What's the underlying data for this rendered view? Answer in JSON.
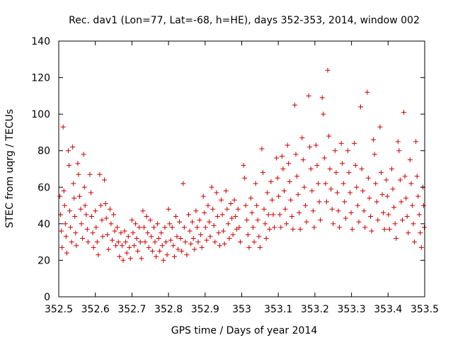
{
  "chart_data": {
    "type": "scatter",
    "title": "Rec. dav1 (Lon=77, Lat=-68, h=HE), days 352-353, 2014, window 002",
    "xlabel": "GPS time / Days of year 2014",
    "ylabel": "STEC from uqrg / TECUs",
    "xlim": [
      352.5,
      353.5
    ],
    "ylim": [
      0,
      140
    ],
    "xticks": [
      352.5,
      352.6,
      352.7,
      352.8,
      352.9,
      353,
      353.1,
      353.2,
      353.3,
      353.4,
      353.5
    ],
    "xtick_labels": [
      "352.5",
      "352.6",
      "352.7",
      "352.8",
      "352.9",
      "353",
      "353.1",
      "353.2",
      "353.3",
      "353.4",
      "353.5"
    ],
    "yticks": [
      0,
      20,
      40,
      60,
      80,
      100,
      120,
      140
    ],
    "ytick_labels": [
      "0",
      "20",
      "40",
      "60",
      "80",
      "100",
      "120",
      "140"
    ],
    "grid": false,
    "marker": "+",
    "marker_color": "#cc0000",
    "points": [
      [
        352.503,
        55
      ],
      [
        352.505,
        45
      ],
      [
        352.507,
        36
      ],
      [
        352.509,
        27
      ],
      [
        352.512,
        93
      ],
      [
        352.514,
        58
      ],
      [
        352.516,
        50
      ],
      [
        352.518,
        40
      ],
      [
        352.52,
        33
      ],
      [
        352.522,
        24
      ],
      [
        352.526,
        80
      ],
      [
        352.528,
        72
      ],
      [
        352.53,
        47
      ],
      [
        352.532,
        38
      ],
      [
        352.535,
        30
      ],
      [
        352.538,
        82
      ],
      [
        352.54,
        62
      ],
      [
        352.542,
        54
      ],
      [
        352.544,
        44
      ],
      [
        352.546,
        35
      ],
      [
        352.548,
        28
      ],
      [
        352.552,
        73
      ],
      [
        352.554,
        67
      ],
      [
        352.557,
        55
      ],
      [
        352.56,
        48
      ],
      [
        352.562,
        40
      ],
      [
        352.565,
        32
      ],
      [
        352.568,
        78
      ],
      [
        352.57,
        60
      ],
      [
        352.572,
        50
      ],
      [
        352.575,
        45
      ],
      [
        352.578,
        37
      ],
      [
        352.58,
        30
      ],
      [
        352.585,
        67
      ],
      [
        352.588,
        57
      ],
      [
        352.59,
        44
      ],
      [
        352.593,
        35
      ],
      [
        352.595,
        27
      ],
      [
        352.6,
        47
      ],
      [
        352.602,
        38
      ],
      [
        352.605,
        30
      ],
      [
        352.608,
        23
      ],
      [
        352.612,
        67
      ],
      [
        352.615,
        50
      ],
      [
        352.618,
        42
      ],
      [
        352.62,
        33
      ],
      [
        352.625,
        64
      ],
      [
        352.628,
        51
      ],
      [
        352.63,
        43
      ],
      [
        352.633,
        34
      ],
      [
        352.636,
        26
      ],
      [
        352.64,
        48
      ],
      [
        352.643,
        40
      ],
      [
        352.646,
        31
      ],
      [
        352.65,
        45
      ],
      [
        352.653,
        36
      ],
      [
        352.656,
        28
      ],
      [
        352.66,
        38
      ],
      [
        352.663,
        30
      ],
      [
        352.666,
        22
      ],
      [
        352.67,
        35
      ],
      [
        352.673,
        28
      ],
      [
        352.676,
        20
      ],
      [
        352.68,
        36
      ],
      [
        352.683,
        30
      ],
      [
        352.686,
        24
      ],
      [
        352.69,
        33
      ],
      [
        352.693,
        27
      ],
      [
        352.696,
        21
      ],
      [
        352.7,
        42
      ],
      [
        352.703,
        35
      ],
      [
        352.706,
        28
      ],
      [
        352.71,
        40
      ],
      [
        352.713,
        32
      ],
      [
        352.716,
        25
      ],
      [
        352.72,
        38
      ],
      [
        352.723,
        30
      ],
      [
        352.726,
        21
      ],
      [
        352.73,
        47
      ],
      [
        352.733,
        38
      ],
      [
        352.736,
        30
      ],
      [
        352.74,
        44
      ],
      [
        352.743,
        35
      ],
      [
        352.746,
        27
      ],
      [
        352.75,
        42
      ],
      [
        352.753,
        33
      ],
      [
        352.756,
        25
      ],
      [
        352.76,
        38
      ],
      [
        352.763,
        30
      ],
      [
        352.766,
        22
      ],
      [
        352.77,
        40
      ],
      [
        352.773,
        32
      ],
      [
        352.776,
        25
      ],
      [
        352.78,
        35
      ],
      [
        352.783,
        28
      ],
      [
        352.786,
        20
      ],
      [
        352.79,
        38
      ],
      [
        352.793,
        30
      ],
      [
        352.796,
        23
      ],
      [
        352.8,
        48
      ],
      [
        352.803,
        40
      ],
      [
        352.806,
        31
      ],
      [
        352.81,
        38
      ],
      [
        352.813,
        28
      ],
      [
        352.816,
        22
      ],
      [
        352.82,
        44
      ],
      [
        352.823,
        33
      ],
      [
        352.826,
        26
      ],
      [
        352.83,
        41
      ],
      [
        352.833,
        32
      ],
      [
        352.836,
        25
      ],
      [
        352.84,
        62
      ],
      [
        352.843,
        38
      ],
      [
        352.846,
        30
      ],
      [
        352.85,
        23
      ],
      [
        352.855,
        45
      ],
      [
        352.858,
        36
      ],
      [
        352.861,
        29
      ],
      [
        352.865,
        41
      ],
      [
        352.868,
        32
      ],
      [
        352.871,
        26
      ],
      [
        352.875,
        47
      ],
      [
        352.878,
        38
      ],
      [
        352.881,
        30
      ],
      [
        352.885,
        42
      ],
      [
        352.888,
        34
      ],
      [
        352.891,
        27
      ],
      [
        352.895,
        55
      ],
      [
        352.898,
        46
      ],
      [
        352.901,
        38
      ],
      [
        352.904,
        31
      ],
      [
        352.908,
        50
      ],
      [
        352.911,
        41
      ],
      [
        352.914,
        33
      ],
      [
        352.918,
        60
      ],
      [
        352.921,
        48
      ],
      [
        352.924,
        39
      ],
      [
        352.927,
        30
      ],
      [
        352.931,
        57
      ],
      [
        352.934,
        44
      ],
      [
        352.937,
        35
      ],
      [
        352.94,
        28
      ],
      [
        352.944,
        53
      ],
      [
        352.947,
        45
      ],
      [
        352.95,
        36
      ],
      [
        352.953,
        29
      ],
      [
        352.957,
        58
      ],
      [
        352.96,
        48
      ],
      [
        352.963,
        40
      ],
      [
        352.966,
        32
      ],
      [
        352.97,
        51
      ],
      [
        352.973,
        43
      ],
      [
        352.976,
        34
      ],
      [
        352.98,
        53
      ],
      [
        352.983,
        44
      ],
      [
        352.986,
        37
      ],
      [
        352.99,
        48
      ],
      [
        352.993,
        38
      ],
      [
        352.996,
        30
      ],
      [
        353.005,
        72
      ],
      [
        353.008,
        65
      ],
      [
        353.011,
        50
      ],
      [
        353.014,
        42
      ],
      [
        353.017,
        34
      ],
      [
        353.02,
        27
      ],
      [
        353.025,
        54
      ],
      [
        353.028,
        46
      ],
      [
        353.031,
        38
      ],
      [
        353.034,
        30
      ],
      [
        353.038,
        62
      ],
      [
        353.041,
        50
      ],
      [
        353.044,
        42
      ],
      [
        353.047,
        33
      ],
      [
        353.05,
        27
      ],
      [
        353.055,
        81
      ],
      [
        353.058,
        68
      ],
      [
        353.061,
        48
      ],
      [
        353.064,
        40
      ],
      [
        353.067,
        32
      ],
      [
        353.07,
        57
      ],
      [
        353.073,
        45
      ],
      [
        353.076,
        37
      ],
      [
        353.08,
        63
      ],
      [
        353.083,
        53
      ],
      [
        353.086,
        45
      ],
      [
        353.089,
        38
      ],
      [
        353.095,
        76
      ],
      [
        353.098,
        65
      ],
      [
        353.101,
        55
      ],
      [
        353.104,
        45
      ],
      [
        353.107,
        38
      ],
      [
        353.11,
        77
      ],
      [
        353.113,
        70
      ],
      [
        353.116,
        58
      ],
      [
        353.119,
        48
      ],
      [
        353.122,
        40
      ],
      [
        353.125,
        83
      ],
      [
        353.128,
        73
      ],
      [
        353.131,
        63
      ],
      [
        353.134,
        53
      ],
      [
        353.137,
        44
      ],
      [
        353.14,
        37
      ],
      [
        353.145,
        105
      ],
      [
        353.148,
        78
      ],
      [
        353.151,
        66
      ],
      [
        353.154,
        56
      ],
      [
        353.157,
        46
      ],
      [
        353.16,
        37
      ],
      [
        353.165,
        87
      ],
      [
        353.168,
        75
      ],
      [
        353.171,
        60
      ],
      [
        353.174,
        50
      ],
      [
        353.177,
        41
      ],
      [
        353.183,
        110
      ],
      [
        353.186,
        82
      ],
      [
        353.189,
        70
      ],
      [
        353.192,
        58
      ],
      [
        353.195,
        47
      ],
      [
        353.198,
        38
      ],
      [
        353.203,
        83
      ],
      [
        353.206,
        72
      ],
      [
        353.209,
        62
      ],
      [
        353.212,
        52
      ],
      [
        353.215,
        42
      ],
      [
        353.22,
        109
      ],
      [
        353.223,
        100
      ],
      [
        353.226,
        76
      ],
      [
        353.229,
        62
      ],
      [
        353.232,
        52
      ],
      [
        353.235,
        124
      ],
      [
        353.238,
        88
      ],
      [
        353.241,
        70
      ],
      [
        353.244,
        59
      ],
      [
        353.247,
        48
      ],
      [
        353.25,
        40
      ],
      [
        353.255,
        80
      ],
      [
        353.258,
        68
      ],
      [
        353.261,
        57
      ],
      [
        353.264,
        47
      ],
      [
        353.267,
        38
      ],
      [
        353.272,
        84
      ],
      [
        353.275,
        73
      ],
      [
        353.278,
        62
      ],
      [
        353.281,
        52
      ],
      [
        353.284,
        43
      ],
      [
        353.29,
        80
      ],
      [
        353.293,
        68
      ],
      [
        353.296,
        57
      ],
      [
        353.299,
        46
      ],
      [
        353.302,
        37
      ],
      [
        353.308,
        84
      ],
      [
        353.311,
        72
      ],
      [
        353.314,
        60
      ],
      [
        353.317,
        50
      ],
      [
        353.32,
        41
      ],
      [
        353.325,
        104
      ],
      [
        353.328,
        70
      ],
      [
        353.331,
        58
      ],
      [
        353.334,
        47
      ],
      [
        353.337,
        38
      ],
      [
        353.343,
        112
      ],
      [
        353.346,
        65
      ],
      [
        353.349,
        54
      ],
      [
        353.352,
        44
      ],
      [
        353.355,
        36
      ],
      [
        353.36,
        86
      ],
      [
        353.363,
        78
      ],
      [
        353.366,
        62
      ],
      [
        353.369,
        52
      ],
      [
        353.372,
        42
      ],
      [
        353.378,
        93
      ],
      [
        353.381,
        68
      ],
      [
        353.384,
        56
      ],
      [
        353.387,
        46
      ],
      [
        353.39,
        37
      ],
      [
        353.395,
        64
      ],
      [
        353.398,
        55
      ],
      [
        353.401,
        45
      ],
      [
        353.404,
        37
      ],
      [
        353.41,
        70
      ],
      [
        353.413,
        59
      ],
      [
        353.416,
        49
      ],
      [
        353.419,
        40
      ],
      [
        353.422,
        32
      ],
      [
        353.427,
        85
      ],
      [
        353.43,
        80
      ],
      [
        353.433,
        64
      ],
      [
        353.436,
        52
      ],
      [
        353.439,
        42
      ],
      [
        353.443,
        101
      ],
      [
        353.446,
        66
      ],
      [
        353.449,
        54
      ],
      [
        353.452,
        44
      ],
      [
        353.455,
        35
      ],
      [
        353.46,
        75
      ],
      [
        353.463,
        62
      ],
      [
        353.466,
        50
      ],
      [
        353.469,
        40
      ],
      [
        353.472,
        30
      ],
      [
        353.476,
        85
      ],
      [
        353.479,
        66
      ],
      [
        353.482,
        55
      ],
      [
        353.485,
        45
      ],
      [
        353.488,
        35
      ],
      [
        353.491,
        27
      ],
      [
        353.495,
        60
      ],
      [
        353.497,
        50
      ],
      [
        353.499,
        38
      ]
    ]
  }
}
